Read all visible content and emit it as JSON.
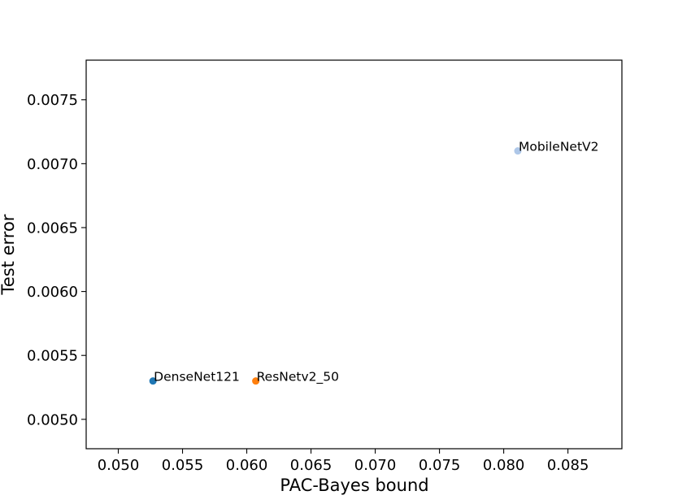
{
  "chart_data": {
    "type": "scatter",
    "title": "",
    "xlabel": "PAC-Bayes bound",
    "ylabel": "Test error",
    "xlim": [
      0.0475,
      0.0892
    ],
    "ylim": [
      0.00477,
      0.00781
    ],
    "xticks": [
      "0.050",
      "0.055",
      "0.060",
      "0.065",
      "0.070",
      "0.075",
      "0.080",
      "0.085"
    ],
    "xtick_values": [
      0.05,
      0.055,
      0.06,
      0.065,
      0.07,
      0.075,
      0.08,
      0.085
    ],
    "yticks": [
      "0.0050",
      "0.0055",
      "0.0060",
      "0.0065",
      "0.0070",
      "0.0075"
    ],
    "ytick_values": [
      0.005,
      0.0055,
      0.006,
      0.0065,
      0.007,
      0.0075
    ],
    "grid": false,
    "legend": "none",
    "points": [
      {
        "label": "DenseNet121",
        "x": 0.0527,
        "y": 0.0053,
        "color": "#1f77b4"
      },
      {
        "label": "ResNetv2_50",
        "x": 0.0607,
        "y": 0.0053,
        "color": "#ff7f0e"
      },
      {
        "label": "MobileNetV2",
        "x": 0.0811,
        "y": 0.0071,
        "color": "#aec7e8"
      }
    ]
  }
}
